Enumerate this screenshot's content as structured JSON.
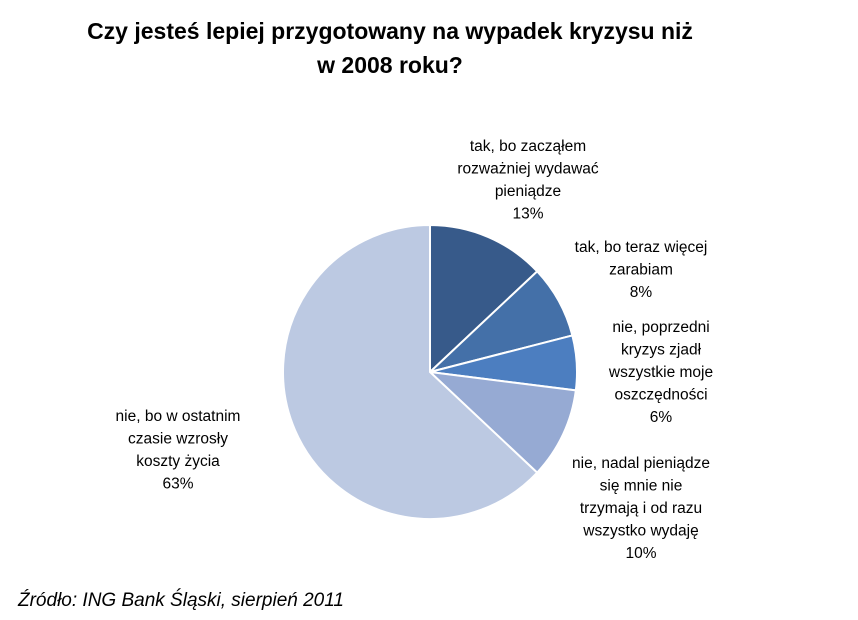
{
  "chart_data": {
    "type": "pie",
    "title": "Czy jesteś lepiej przygotowany na wypadek kryzysu niż\nw 2008 roku?",
    "slices": [
      {
        "label": [
          "tak, bo zacząłem",
          "rozważniej wydawać",
          "pieniądze"
        ],
        "percent_label": "13%",
        "value": 13,
        "color": "#375A8A"
      },
      {
        "label": [
          "tak, bo teraz więcej",
          "zarabiam"
        ],
        "percent_label": "8%",
        "value": 8,
        "color": "#4470A8"
      },
      {
        "label": [
          "nie, poprzedni",
          "kryzys zjadł",
          "wszystkie moje",
          "oszczędności"
        ],
        "percent_label": "6%",
        "value": 6,
        "color": "#4C7EC0"
      },
      {
        "label": [
          "nie, nadal pieniądze",
          "się mnie nie",
          "trzymają i od razu",
          "wszystko wydaję"
        ],
        "percent_label": "10%",
        "value": 10,
        "color": "#96AAD3"
      },
      {
        "label": [
          "nie, bo w ostatnim",
          "czasie wzrosły",
          "koszty życia"
        ],
        "percent_label": "63%",
        "value": 63,
        "color": "#BCC9E2"
      }
    ]
  },
  "source": "Źródło: ING Bank Śląski, sierpień 2011"
}
